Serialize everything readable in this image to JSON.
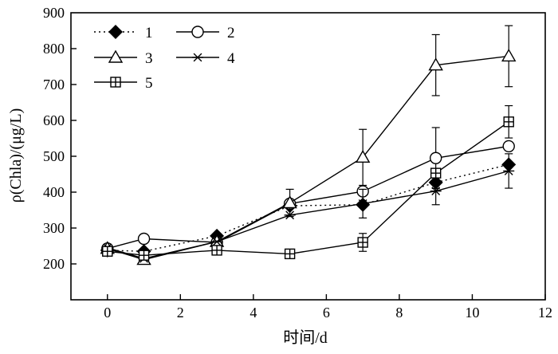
{
  "chart_data": {
    "type": "line",
    "title": "",
    "xlabel": "时间/d",
    "ylabel": "ρ(Chla)/(μg/L)",
    "xlim": [
      -1,
      12
    ],
    "ylim": [
      100,
      900
    ],
    "xticks": [
      0,
      2,
      4,
      6,
      8,
      10,
      12
    ],
    "yticks": [
      200,
      300,
      400,
      500,
      600,
      700,
      800,
      900
    ],
    "grid": false,
    "legend_position": "top-left",
    "x": [
      0,
      1,
      3,
      5,
      7,
      9,
      11
    ],
    "series": [
      {
        "name": "1",
        "marker": "filled-diamond",
        "line_style": "dotted",
        "values": [
          238,
          235,
          278,
          362,
          365,
          427,
          477
        ],
        "errors": [
          0,
          0,
          0,
          0,
          0,
          0,
          0
        ]
      },
      {
        "name": "2",
        "marker": "open-circle",
        "line_style": "solid",
        "values": [
          243,
          270,
          260,
          368,
          402,
          495,
          528
        ],
        "errors": [
          0,
          0,
          0,
          0,
          0,
          85,
          0
        ]
      },
      {
        "name": "3",
        "marker": "open-triangle",
        "line_style": "solid",
        "values": [
          243,
          212,
          262,
          370,
          497,
          754,
          779
        ],
        "errors": [
          0,
          0,
          0,
          38,
          78,
          85,
          85
        ]
      },
      {
        "name": "4",
        "marker": "asterisk",
        "line_style": "solid",
        "values": [
          245,
          215,
          262,
          336,
          368,
          403,
          459
        ],
        "errors": [
          0,
          0,
          0,
          0,
          40,
          38,
          48
        ]
      },
      {
        "name": "5",
        "marker": "open-square-plus",
        "line_style": "solid",
        "values": [
          235,
          224,
          238,
          228,
          260,
          453,
          596
        ],
        "errors": [
          0,
          0,
          0,
          0,
          25,
          0,
          45
        ]
      }
    ]
  }
}
